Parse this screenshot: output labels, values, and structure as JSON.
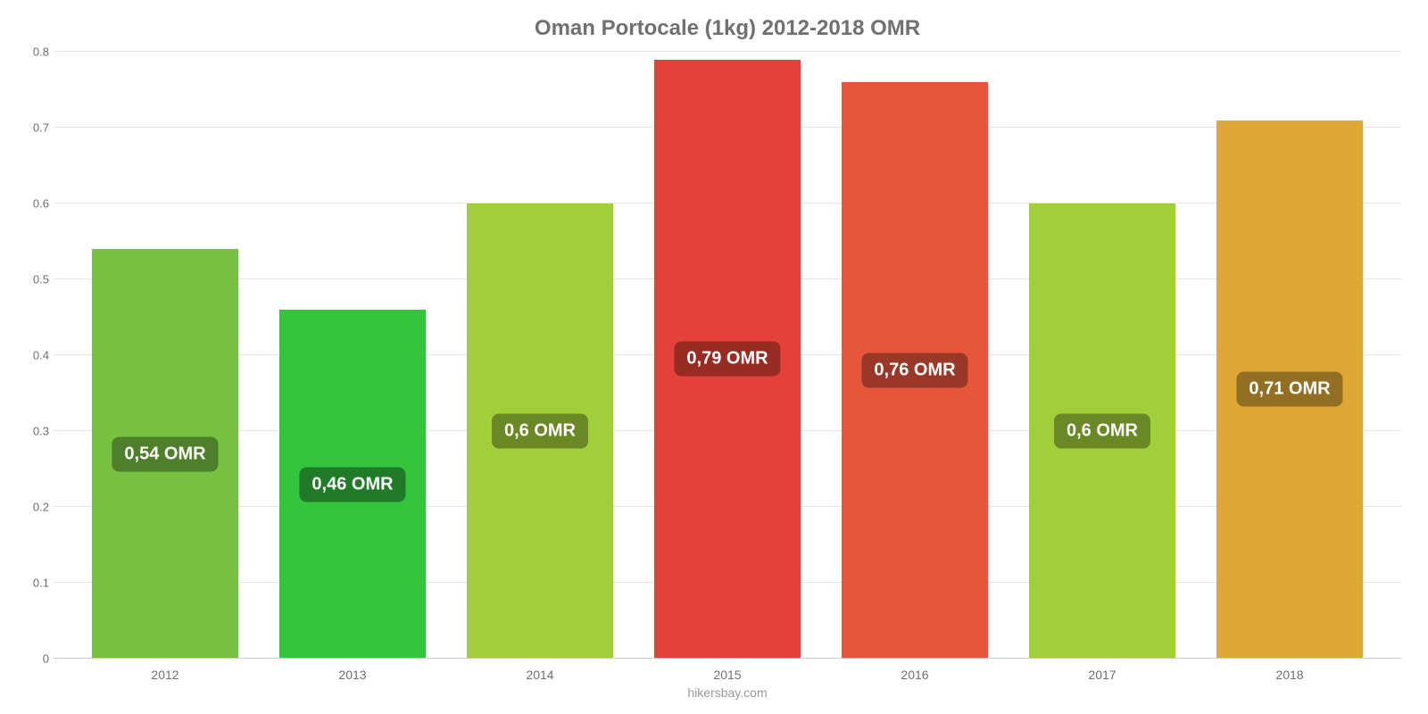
{
  "chart": {
    "type": "bar",
    "title": "Oman Portocale (1kg) 2012-2018 OMR",
    "title_fontsize": 24,
    "title_color": "#707070",
    "source": "hikersbay.com",
    "background_color": "#ffffff",
    "grid_color": "#e6e6e6",
    "axis_color": "#cccccc",
    "tick_color": "#707070",
    "tick_fontsize": 13,
    "xlabel_fontsize": 14,
    "value_badge_fontsize": 20,
    "bar_width_pct": 78,
    "ylim": [
      0,
      0.8
    ],
    "yticks": [
      0,
      0.1,
      0.2,
      0.3,
      0.4,
      0.5,
      0.6,
      0.7,
      0.8
    ],
    "categories": [
      "2012",
      "2013",
      "2014",
      "2015",
      "2016",
      "2017",
      "2018"
    ],
    "values": [
      0.54,
      0.46,
      0.6,
      0.79,
      0.76,
      0.6,
      0.71
    ],
    "value_labels": [
      "0,54 OMR",
      "0,46 OMR",
      "0,6 OMR",
      "0,79 OMR",
      "0,76 OMR",
      "0,6 OMR",
      "0,71 OMR"
    ],
    "bar_colors": [
      "#77c140",
      "#34c53f",
      "#a1cf39",
      "#e34139",
      "#e5563b",
      "#a1cf39",
      "#dea836"
    ],
    "badge_colors": [
      "#4e7f2a",
      "#1f7b27",
      "#6a8825",
      "#992b25",
      "#993827",
      "#6a8825",
      "#926f23"
    ]
  }
}
